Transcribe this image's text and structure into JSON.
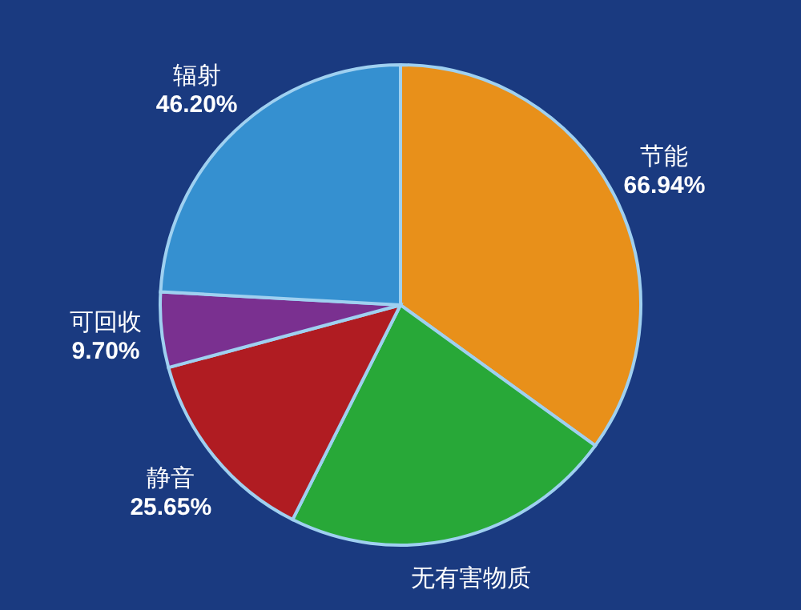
{
  "chart_data": {
    "type": "pie",
    "categories": [
      "节能",
      "无有害物质",
      "静音",
      "可回收",
      "辐射"
    ],
    "values": [
      66.94,
      43,
      25.65,
      9.7,
      46.2
    ],
    "value_labels": [
      "66.94%",
      null,
      "25.65%",
      "9.70%",
      "46.20%"
    ],
    "colors": [
      "#e8901a",
      "#28a838",
      "#b01c22",
      "#7a3090",
      "#3590d0"
    ]
  }
}
